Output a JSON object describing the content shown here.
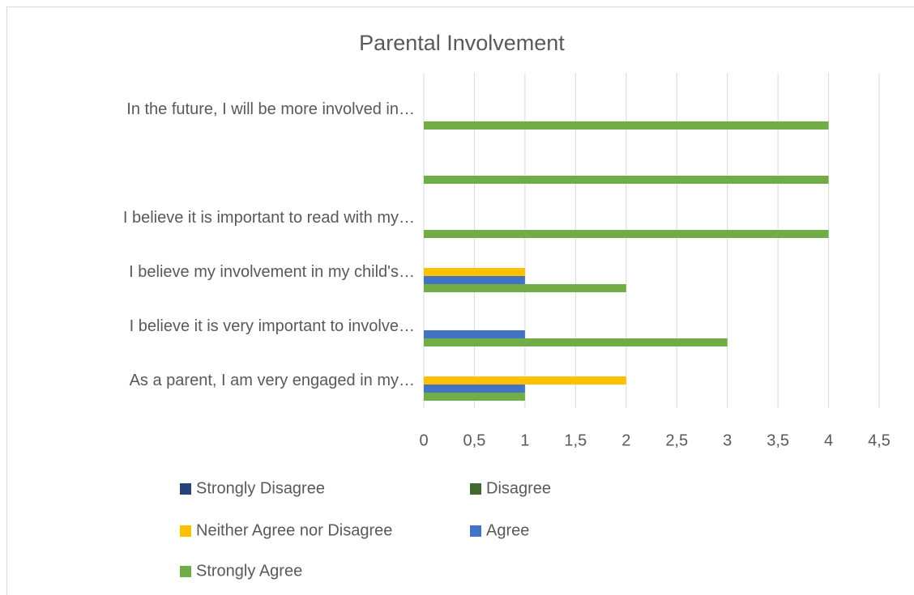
{
  "chart_data": {
    "type": "hbar",
    "title": "Parental Involvement",
    "categories": [
      "As a parent, I am very engaged in my…",
      "I believe it is very important to involve…",
      "I believe my involvement in my child's…",
      "I believe it is important to read with my…",
      null,
      "In the future, I will be more involved in…"
    ],
    "series": [
      {
        "name": "Strongly Disagree",
        "color": "#264478",
        "values": [
          0,
          0,
          0,
          0,
          0,
          0
        ]
      },
      {
        "name": "Disagree",
        "color": "#43682b",
        "values": [
          0,
          0,
          0,
          0,
          0,
          0
        ]
      },
      {
        "name": "Neither Agree nor Disagree",
        "color": "#ffc000",
        "values": [
          2,
          0,
          1,
          0,
          0,
          0
        ]
      },
      {
        "name": "Agree",
        "color": "#4472c4",
        "values": [
          1,
          1,
          1,
          0,
          0,
          0
        ]
      },
      {
        "name": "Strongly Agree",
        "color": "#70ad47",
        "values": [
          1,
          3,
          2,
          4,
          4,
          4
        ]
      }
    ],
    "xlim": [
      0,
      4.5
    ],
    "xticks": [
      0,
      {
        "value": 0.5,
        "label": "0,5"
      },
      1,
      {
        "value": 1.5,
        "label": "1,5"
      },
      2,
      {
        "value": 2.5,
        "label": "2,5"
      },
      3,
      {
        "value": 3.5,
        "label": "3,5"
      },
      4,
      {
        "value": 4.5,
        "label": "4,5"
      }
    ],
    "grid": true
  }
}
